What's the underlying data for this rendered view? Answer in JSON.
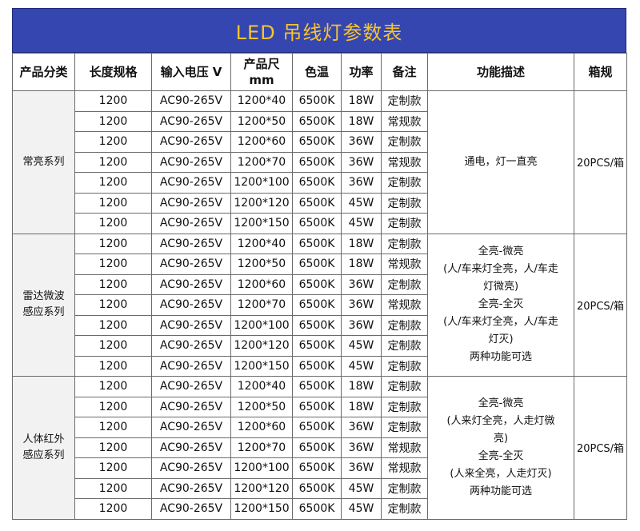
{
  "title": "LED 吊线灯参数表",
  "headers": [
    "产品分类",
    "长度规格",
    "输入电压 V",
    "产品尺\nmm",
    "色温",
    "功率",
    "备注",
    "功能描述",
    "箱规"
  ],
  "groups": [
    {
      "category": "常亮系列",
      "function": [
        "通电，灯一直亮"
      ],
      "box": "20PCS/箱",
      "rows": [
        [
          "1200",
          "AC90-265V",
          "1200*40",
          "6500K",
          "18W",
          "定制款"
        ],
        [
          "1200",
          "AC90-265V",
          "1200*50",
          "6500K",
          "18W",
          "常规款"
        ],
        [
          "1200",
          "AC90-265V",
          "1200*60",
          "6500K",
          "36W",
          "定制款"
        ],
        [
          "1200",
          "AC90-265V",
          "1200*70",
          "6500K",
          "36W",
          "常规款"
        ],
        [
          "1200",
          "AC90-265V",
          "1200*100",
          "6500K",
          "36W",
          "定制款"
        ],
        [
          "1200",
          "AC90-265V",
          "1200*120",
          "6500K",
          "45W",
          "定制款"
        ],
        [
          "1200",
          "AC90-265V",
          "1200*150",
          "6500K",
          "45W",
          "定制款"
        ]
      ]
    },
    {
      "category": "雷达微波\n感应系列",
      "function": [
        "全亮-微亮",
        "(人/车来灯全亮，人/车走",
        "灯微亮)",
        "全亮-全灭",
        "(人/车来灯全亮，人/车走",
        "灯灭)",
        "两种功能可选"
      ],
      "box": "20PCS/箱",
      "rows": [
        [
          "1200",
          "AC90-265V",
          "1200*40",
          "6500K",
          "18W",
          "定制款"
        ],
        [
          "1200",
          "AC90-265V",
          "1200*50",
          "6500K",
          "18W",
          "常规款"
        ],
        [
          "1200",
          "AC90-265V",
          "1200*60",
          "6500K",
          "36W",
          "定制款"
        ],
        [
          "1200",
          "AC90-265V",
          "1200*70",
          "6500K",
          "36W",
          "常规款"
        ],
        [
          "1200",
          "AC90-265V",
          "1200*100",
          "6500K",
          "36W",
          "定制款"
        ],
        [
          "1200",
          "AC90-265V",
          "1200*120",
          "6500K",
          "45W",
          "定制款"
        ],
        [
          "1200",
          "AC90-265V",
          "1200*150",
          "6500K",
          "45W",
          "定制款"
        ]
      ]
    },
    {
      "category": "人体红外\n感应系列",
      "function": [
        "全亮-微亮",
        "(人来灯全亮，人走灯微",
        "亮)",
        "全亮-全灭",
        "(人来全亮，人走灯灭)",
        "两种功能可选"
      ],
      "box": "20PCS/箱",
      "rows": [
        [
          "1200",
          "AC90-265V",
          "1200*40",
          "6500K",
          "18W",
          "定制款"
        ],
        [
          "1200",
          "AC90-265V",
          "1200*50",
          "6500K",
          "18W",
          "定制款"
        ],
        [
          "1200",
          "AC90-265V",
          "1200*60",
          "6500K",
          "36W",
          "定制款"
        ],
        [
          "1200",
          "AC90-265V",
          "1200*70",
          "6500K",
          "36W",
          "常规款"
        ],
        [
          "1200",
          "AC90-265V",
          "1200*100",
          "6500K",
          "36W",
          "常规款"
        ],
        [
          "1200",
          "AC90-265V",
          "1200*120",
          "6500K",
          "45W",
          "定制款"
        ],
        [
          "1200",
          "AC90-265V",
          "1200*150",
          "6500K",
          "45W",
          "定制款"
        ]
      ]
    }
  ]
}
